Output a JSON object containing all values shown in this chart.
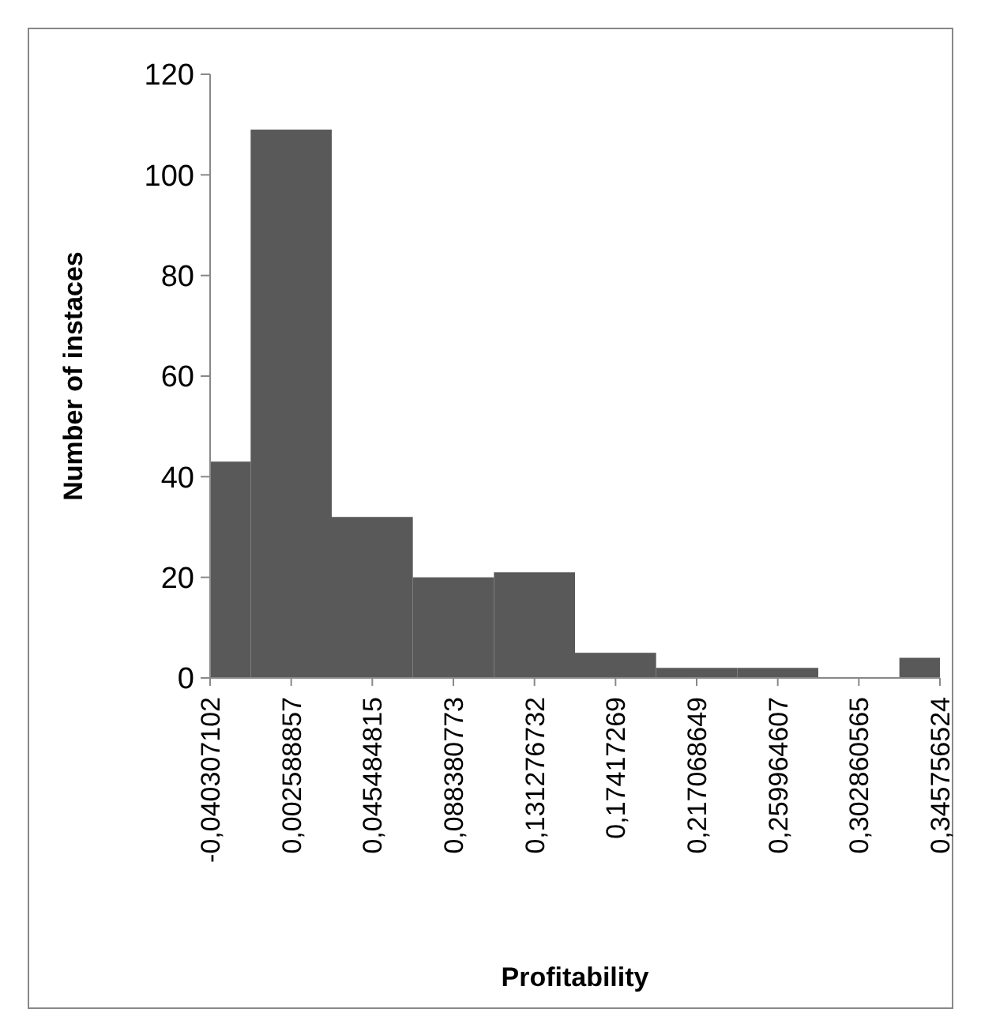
{
  "chart_data": {
    "type": "bar",
    "xlabel": "Profitability",
    "ylabel": "Number of instaces",
    "x": [
      -0.040307102,
      0.002588857,
      0.045484815,
      0.088380773,
      0.131276732,
      0.17417269,
      0.217068649,
      0.259964607,
      0.302860565,
      0.345756524
    ],
    "values": [
      43,
      109,
      32,
      20,
      21,
      5,
      2,
      2,
      0,
      4
    ],
    "color": "#595959",
    "xlim": [
      -0.040307102,
      0.345756524
    ],
    "xticks": [
      {
        "value": -0.040307102,
        "label": "-0,040307102"
      },
      {
        "value": 0.002588857,
        "label": "0,002588857"
      },
      {
        "value": 0.045484815,
        "label": "0,045484815"
      },
      {
        "value": 0.088380773,
        "label": "0,088380773"
      },
      {
        "value": 0.131276732,
        "label": "0,131276732"
      },
      {
        "value": 0.17417269,
        "label": "0,17417269"
      },
      {
        "value": 0.217068649,
        "label": "0,217068649"
      },
      {
        "value": 0.259964607,
        "label": "0,259964607"
      },
      {
        "value": 0.302860565,
        "label": "0,302860565"
      },
      {
        "value": 0.345756524,
        "label": "0,345756524"
      }
    ],
    "ylim": [
      0,
      120
    ],
    "yticks": [
      0,
      20,
      40,
      60,
      80,
      100,
      120
    ],
    "grid": false
  }
}
